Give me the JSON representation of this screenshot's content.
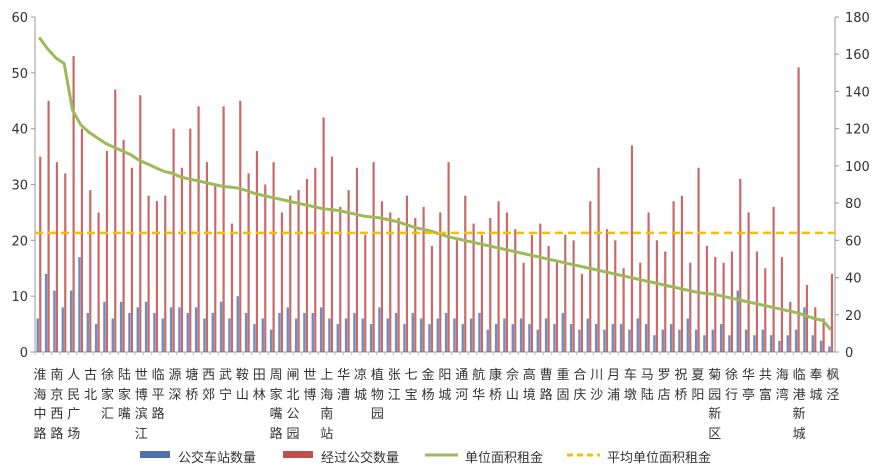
{
  "chart_data": {
    "type": "bar+line",
    "categories_labeled": [
      "淮海中路",
      "南京西路",
      "人民广场",
      "古北",
      "徐家汇",
      "陆家嘴",
      "世博滨江",
      "临平路",
      "源深",
      "塘桥",
      "西郊",
      "武宁",
      "鞍山",
      "田林",
      "周家嘴路",
      "闸北公园",
      "世博",
      "上海南站",
      "华漕",
      "凉城",
      "植物园",
      "张江",
      "七宝",
      "金杨",
      "阳城",
      "通河",
      "航华",
      "康桥",
      "佘山",
      "高境",
      "曹路",
      "重固",
      "合庆",
      "川沙",
      "月浦",
      "车墩",
      "马陆",
      "罗店",
      "祝桥",
      "夏阳",
      "菊园新区",
      "徐行",
      "华亭",
      "共富",
      "海湾",
      "临港新城",
      "奉城",
      "枫泾"
    ],
    "left_axis": {
      "min": 0,
      "max": 60,
      "ticks": [
        0,
        10,
        20,
        30,
        40,
        50,
        60
      ]
    },
    "right_axis": {
      "min": 0,
      "max": 180,
      "ticks": [
        0,
        20,
        40,
        60,
        80,
        100,
        120,
        140,
        160,
        180
      ]
    },
    "series": [
      {
        "name": "公交车站数量",
        "type": "bar",
        "axis": "left",
        "color": "#4f6fad",
        "values": [
          6,
          14,
          11,
          8,
          11,
          17,
          7,
          5,
          9,
          6,
          9,
          7,
          8,
          9,
          7,
          6,
          8,
          8,
          7,
          8,
          6,
          7,
          9,
          6,
          10,
          7,
          5,
          6,
          4,
          7,
          8,
          6,
          7,
          7,
          8,
          6,
          5,
          6,
          7,
          6,
          5,
          8,
          6,
          7,
          5,
          7,
          6,
          5,
          6,
          7,
          6,
          5,
          6,
          7,
          4,
          5,
          6,
          5,
          6,
          5,
          4,
          6,
          5,
          7,
          5,
          4,
          6,
          5,
          4,
          5,
          5,
          4,
          6,
          5,
          3,
          4,
          5,
          4,
          6,
          4,
          3,
          4,
          5,
          3,
          11,
          4,
          3,
          4,
          3,
          2,
          3,
          4,
          8,
          3,
          2,
          1
        ]
      },
      {
        "name": "经过公交数量",
        "type": "bar",
        "axis": "left",
        "color": "#c0504d",
        "values": [
          35,
          45,
          34,
          32,
          53,
          40,
          29,
          25,
          36,
          47,
          38,
          33,
          46,
          28,
          27,
          28,
          40,
          33,
          40,
          44,
          34,
          30,
          44,
          23,
          45,
          32,
          36,
          30,
          34,
          25,
          28,
          29,
          31,
          33,
          42,
          35,
          26,
          29,
          33,
          21,
          34,
          27,
          25,
          24,
          28,
          24,
          26,
          19,
          25,
          34,
          20,
          28,
          23,
          21,
          24,
          27,
          25,
          22,
          16,
          21,
          23,
          19,
          16,
          21,
          20,
          14,
          27,
          33,
          22,
          20,
          15,
          37,
          16,
          25,
          20,
          18,
          27,
          28,
          16,
          33,
          19,
          17,
          16,
          18,
          31,
          25,
          18,
          15,
          26,
          17,
          9,
          51,
          12,
          8,
          6,
          14
        ]
      },
      {
        "name": "单位面积租金",
        "type": "line",
        "axis": "right",
        "color": "#9bbb59",
        "values": [
          169,
          163,
          158,
          155,
          130,
          122,
          118,
          115,
          112,
          110,
          108,
          106,
          103,
          101,
          99,
          97,
          96,
          94,
          93,
          92,
          91,
          90,
          89,
          88.5,
          88,
          86.5,
          85,
          84,
          83,
          82,
          81,
          80,
          79,
          78,
          77,
          76.5,
          76,
          75,
          74,
          73,
          72.5,
          72,
          71,
          70,
          68.5,
          67,
          66,
          65,
          63.5,
          62,
          61,
          60,
          59,
          58,
          57,
          56,
          55,
          54,
          53,
          52,
          51,
          50,
          49,
          48,
          47,
          46,
          45,
          44,
          43,
          42,
          41,
          40,
          39,
          38,
          37,
          36,
          35,
          34,
          33,
          32,
          31.5,
          31,
          30,
          29,
          28,
          27,
          26,
          25,
          24,
          23,
          22,
          21,
          19.5,
          18,
          17,
          12
        ]
      },
      {
        "name": "平均单位面积租金",
        "type": "line",
        "style": "dashed",
        "axis": "right",
        "color": "#f5c000",
        "value": 64
      }
    ],
    "legend": "bottom"
  }
}
